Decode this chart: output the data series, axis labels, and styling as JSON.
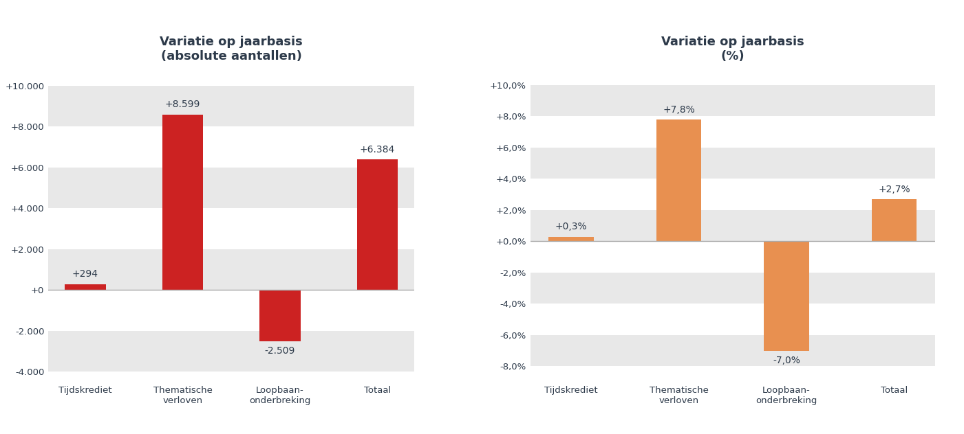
{
  "chart1": {
    "title": "Variatie op jaarbasis\n(absolute aantallen)",
    "categories": [
      "Tijdskrediet",
      "Thematische\nverloven",
      "Loopbaan-\nonderbreking",
      "Totaal"
    ],
    "values": [
      294,
      8599,
      -2509,
      6384
    ],
    "bar_color": "#cc2222",
    "bar_labels": [
      "+294",
      "+8.599",
      "-2.509",
      "+6.384"
    ],
    "ylim": [
      -4500,
      10800
    ],
    "yticks": [
      -4000,
      -2000,
      0,
      2000,
      4000,
      6000,
      8000,
      10000
    ],
    "ytick_labels": [
      "-4.000",
      "-2.000",
      "+0",
      "+2.000",
      "+4.000",
      "+6.000",
      "+8.000",
      "+10.000"
    ]
  },
  "chart2": {
    "title": "Variatie op jaarbasis\n(%)",
    "categories": [
      "Tijdskrediet",
      "Thematische\nverloven",
      "Loopbaan-\nonderbreking",
      "Totaal"
    ],
    "values": [
      0.3,
      7.8,
      -7.0,
      2.7
    ],
    "bar_color": "#e89050",
    "bar_labels": [
      "+0,3%",
      "+7,8%",
      "-7,0%",
      "+2,7%"
    ],
    "ylim": [
      -9.0,
      11.0
    ],
    "yticks": [
      -8,
      -6,
      -4,
      -2,
      0,
      2,
      4,
      6,
      8,
      10
    ],
    "ytick_labels": [
      "-8,0%",
      "-6,0%",
      "-4,0%",
      "-2,0%",
      "+0,0%",
      "+2,0%",
      "+4,0%",
      "+6,0%",
      "+8,0%",
      "+10,0%"
    ]
  },
  "band_color_light": "#ffffff",
  "band_color_dark": "#e8e8e8",
  "fig_bg_color": "#ffffff",
  "title_color": "#2d3a4a",
  "label_color": "#2d3a4a",
  "bar_width": 0.42,
  "title_fontsize": 13,
  "tick_fontsize": 9.5,
  "annotation_fontsize": 10
}
